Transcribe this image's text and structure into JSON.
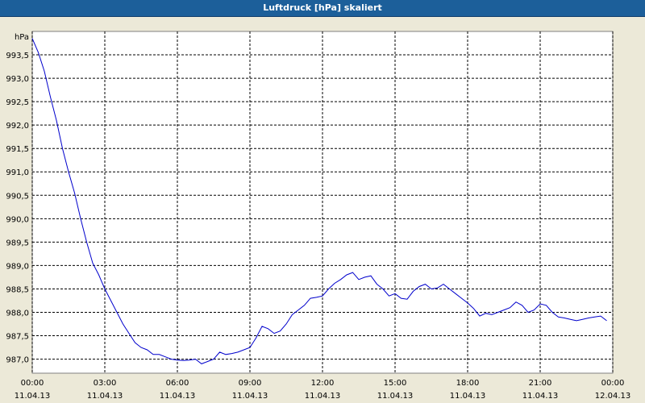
{
  "window": {
    "title": "Luftdruck [hPa] skaliert"
  },
  "colors": {
    "line": "#0000cc",
    "plot_bg": "#ffffff",
    "grid": "#000000",
    "frame_bg": "#ece9d8",
    "title_bg": "#1c5f9a"
  },
  "chart_data": {
    "type": "line",
    "title": "Luftdruck [hPa] skaliert",
    "ylabel": "hPa",
    "xlabel": "",
    "ylim": [
      986.7,
      994.0
    ],
    "xlim": [
      0,
      24
    ],
    "grid": true,
    "yticks": [
      {
        "value": 987.0,
        "label": "987,0"
      },
      {
        "value": 987.5,
        "label": "987,5"
      },
      {
        "value": 988.0,
        "label": "988,0"
      },
      {
        "value": 988.5,
        "label": "988,5"
      },
      {
        "value": 989.0,
        "label": "989,0"
      },
      {
        "value": 989.5,
        "label": "989,5"
      },
      {
        "value": 990.0,
        "label": "990,0"
      },
      {
        "value": 990.5,
        "label": "990,5"
      },
      {
        "value": 991.0,
        "label": "991,0"
      },
      {
        "value": 991.5,
        "label": "991,5"
      },
      {
        "value": 992.0,
        "label": "992,0"
      },
      {
        "value": 992.5,
        "label": "992,5"
      },
      {
        "value": 993.0,
        "label": "993,0"
      },
      {
        "value": 993.5,
        "label": "993,5"
      }
    ],
    "xticks": [
      {
        "value": 0,
        "time": "00:00",
        "date": "11.04.13"
      },
      {
        "value": 3,
        "time": "03:00",
        "date": "11.04.13"
      },
      {
        "value": 6,
        "time": "06:00",
        "date": "11.04.13"
      },
      {
        "value": 9,
        "time": "09:00",
        "date": "11.04.13"
      },
      {
        "value": 12,
        "time": "12:00",
        "date": "11.04.13"
      },
      {
        "value": 15,
        "time": "15:00",
        "date": "11.04.13"
      },
      {
        "value": 18,
        "time": "18:00",
        "date": "11.04.13"
      },
      {
        "value": 21,
        "time": "21:00",
        "date": "11.04.13"
      },
      {
        "value": 24,
        "time": "00:00",
        "date": "12.04.13"
      }
    ],
    "series": [
      {
        "x": [
          0,
          0.25,
          0.5,
          0.75,
          1.0,
          1.25,
          1.5,
          1.75,
          2.0,
          2.25,
          2.5,
          2.75,
          3.0,
          3.25,
          3.5,
          3.75,
          4.0,
          4.25,
          4.5,
          4.75,
          5.0,
          5.25,
          5.5,
          5.75,
          6.0,
          6.25,
          6.5,
          6.75,
          7.0,
          7.25,
          7.5,
          7.75,
          8.0,
          8.25,
          8.5,
          8.75,
          9.0,
          9.25,
          9.5,
          9.75,
          10.0,
          10.25,
          10.5,
          10.75,
          11.0,
          11.25,
          11.5,
          11.75,
          12.0,
          12.25,
          12.5,
          12.75,
          13.0,
          13.25,
          13.5,
          13.75,
          14.0,
          14.25,
          14.5,
          14.75,
          15.0,
          15.25,
          15.5,
          15.75,
          16.0,
          16.25,
          16.5,
          16.75,
          17.0,
          17.25,
          17.5,
          17.75,
          18.0,
          18.25,
          18.5,
          18.75,
          19.0,
          19.25,
          19.5,
          19.75,
          20.0,
          20.25,
          20.5,
          20.75,
          21.0,
          21.25,
          21.5,
          21.75,
          22.0,
          22.25,
          22.5,
          22.75,
          23.0,
          23.25,
          23.5,
          23.75
        ],
        "values": [
          993.85,
          993.55,
          993.15,
          992.6,
          992.1,
          991.5,
          991.0,
          990.55,
          990.0,
          989.5,
          989.05,
          988.8,
          988.5,
          988.25,
          988.0,
          987.75,
          987.55,
          987.35,
          987.25,
          987.2,
          987.1,
          987.1,
          987.05,
          987.0,
          986.98,
          986.97,
          986.98,
          987.0,
          986.9,
          986.95,
          987.0,
          987.15,
          987.1,
          987.12,
          987.15,
          987.2,
          987.25,
          987.45,
          987.7,
          987.65,
          987.55,
          987.6,
          987.75,
          987.95,
          988.05,
          988.15,
          988.3,
          988.32,
          988.35,
          988.5,
          988.62,
          988.7,
          988.8,
          988.85,
          988.7,
          988.75,
          988.78,
          988.6,
          988.5,
          988.35,
          988.4,
          988.3,
          988.28,
          988.45,
          988.55,
          988.6,
          988.5,
          988.52,
          988.6,
          988.5,
          988.4,
          988.3,
          988.2,
          988.08,
          987.92,
          987.98,
          987.95,
          988.0,
          988.05,
          988.1,
          988.22,
          988.15,
          988.0,
          988.05,
          988.18,
          988.15,
          988.0,
          987.9,
          987.88,
          987.85,
          987.82,
          987.85,
          987.88,
          987.9,
          987.92,
          987.82
        ]
      }
    ]
  }
}
